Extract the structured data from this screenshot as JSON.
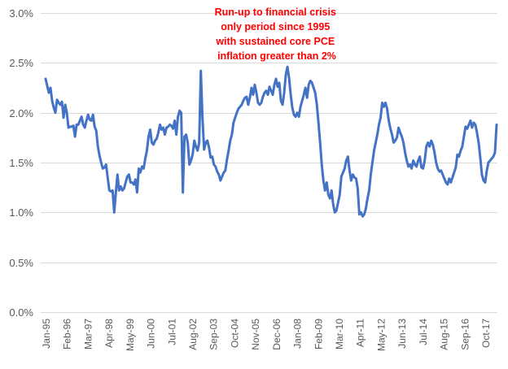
{
  "chart_data": {
    "type": "line",
    "title": "",
    "xlabel": "",
    "ylabel": "",
    "ylim": [
      0,
      3.0
    ],
    "y_ticks": [
      "0.0%",
      "0.5%",
      "1.0%",
      "1.5%",
      "2.0%",
      "2.5%",
      "3.0%"
    ],
    "x_tick_labels": [
      "Jan-95",
      "Feb-96",
      "Mar-97",
      "Apr-98",
      "May-99",
      "Jun-00",
      "Jul-01",
      "Aug-02",
      "Sep-03",
      "Oct-04",
      "Nov-05",
      "Dec-06",
      "Jan-08",
      "Feb-09",
      "Mar-10",
      "Apr-11",
      "May-12",
      "Jun-13",
      "Jul-14",
      "Aug-15",
      "Sep-16",
      "Oct-17"
    ],
    "grid": true,
    "legend": "none",
    "line_color": "#4472c4",
    "annotation": {
      "lines": [
        "Run-up to financial crisis",
        "only period since 1995",
        "with sustained core PCE",
        "inflation greater than 2%"
      ],
      "color": "#ff0000"
    },
    "series": [
      {
        "values": [
          2.34,
          2.27,
          2.2,
          2.25,
          2.12,
          2.05,
          2.0,
          2.13,
          2.1,
          2.08,
          2.11,
          1.95,
          2.08,
          2.0,
          1.85,
          1.86,
          1.86,
          1.87,
          1.76,
          1.88,
          1.88,
          1.92,
          1.96,
          1.88,
          1.85,
          1.92,
          1.98,
          1.93,
          1.92,
          1.98,
          1.86,
          1.82,
          1.66,
          1.57,
          1.5,
          1.44,
          1.45,
          1.48,
          1.35,
          1.22,
          1.21,
          1.22,
          1.0,
          1.2,
          1.38,
          1.22,
          1.26,
          1.22,
          1.24,
          1.3,
          1.36,
          1.38,
          1.3,
          1.3,
          1.28,
          1.33,
          1.2,
          1.44,
          1.4,
          1.46,
          1.44,
          1.54,
          1.62,
          1.76,
          1.83,
          1.7,
          1.68,
          1.72,
          1.74,
          1.8,
          1.88,
          1.83,
          1.85,
          1.78,
          1.85,
          1.86,
          1.88,
          1.87,
          1.84,
          1.92,
          1.78,
          1.96,
          2.02,
          2.0,
          1.2,
          1.76,
          1.78,
          1.7,
          1.48,
          1.52,
          1.58,
          1.72,
          1.66,
          1.62,
          1.7,
          2.42,
          1.95,
          1.63,
          1.7,
          1.72,
          1.65,
          1.55,
          1.56,
          1.48,
          1.46,
          1.41,
          1.38,
          1.32,
          1.36,
          1.4,
          1.42,
          1.53,
          1.62,
          1.72,
          1.78,
          1.9,
          1.95,
          2.0,
          2.04,
          2.06,
          2.08,
          2.12,
          2.15,
          2.16,
          2.08,
          2.15,
          2.25,
          2.18,
          2.28,
          2.2,
          2.1,
          2.08,
          2.1,
          2.16,
          2.2,
          2.22,
          2.18,
          2.26,
          2.22,
          2.18,
          2.28,
          2.34,
          2.26,
          2.3,
          2.12,
          2.08,
          2.2,
          2.38,
          2.46,
          2.35,
          2.18,
          2.05,
          1.98,
          1.96,
          2.0,
          1.96,
          2.06,
          2.12,
          2.18,
          2.25,
          2.15,
          2.28,
          2.32,
          2.3,
          2.25,
          2.2,
          2.08,
          1.9,
          1.7,
          1.48,
          1.32,
          1.22,
          1.3,
          1.18,
          1.14,
          1.22,
          1.08,
          1.0,
          1.02,
          1.1,
          1.18,
          1.36,
          1.4,
          1.44,
          1.52,
          1.56,
          1.42,
          1.32,
          1.38,
          1.35,
          1.34,
          1.24,
          0.98,
          1.0,
          0.96,
          0.98,
          1.04,
          1.14,
          1.22,
          1.38,
          1.5,
          1.62,
          1.7,
          1.78,
          1.88,
          1.95,
          2.1,
          2.06,
          2.1,
          2.04,
          1.92,
          1.84,
          1.78,
          1.7,
          1.72,
          1.75,
          1.85,
          1.8,
          1.76,
          1.7,
          1.6,
          1.52,
          1.46,
          1.48,
          1.44,
          1.52,
          1.48,
          1.46,
          1.52,
          1.56,
          1.45,
          1.44,
          1.52,
          1.66,
          1.7,
          1.66,
          1.72,
          1.68,
          1.6,
          1.5,
          1.44,
          1.41,
          1.42,
          1.38,
          1.34,
          1.3,
          1.28,
          1.34,
          1.3,
          1.35,
          1.4,
          1.45,
          1.58,
          1.56,
          1.62,
          1.66,
          1.76,
          1.86,
          1.84,
          1.88,
          1.92,
          1.85,
          1.9,
          1.88,
          1.8,
          1.7,
          1.55,
          1.38,
          1.32,
          1.3,
          1.42,
          1.5,
          1.52,
          1.54,
          1.56,
          1.6,
          1.88
        ]
      }
    ]
  }
}
